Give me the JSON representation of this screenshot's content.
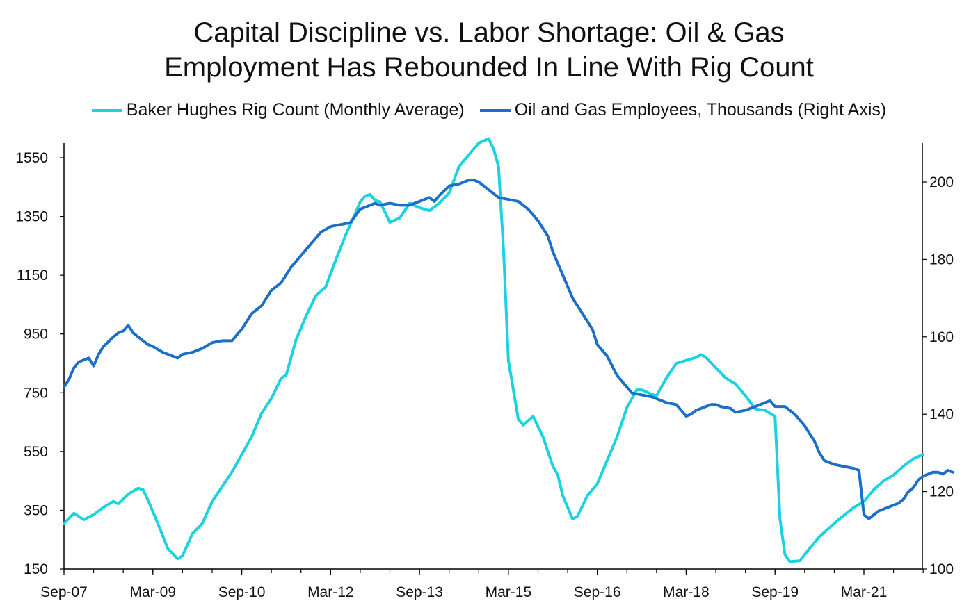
{
  "chart_data": {
    "type": "line",
    "title_line1": "Capital Discipline vs. Labor Shortage: Oil & Gas",
    "title_line2": "Employment Has Rebounded In Line With Rig Count",
    "colors": {
      "rig": "#1bd3e0",
      "employees": "#1c6fc8"
    },
    "x_tick_labels": [
      "Sep-07",
      "Mar-09",
      "Sep-10",
      "Mar-12",
      "Sep-13",
      "Mar-15",
      "Sep-16",
      "Mar-18",
      "Sep-19",
      "Mar-21"
    ],
    "x_range_months": [
      0,
      174
    ],
    "y_left": {
      "ticks": [
        1550,
        1350,
        1150,
        950,
        750,
        550,
        350,
        150
      ],
      "range": [
        150,
        1600
      ]
    },
    "y_right": {
      "ticks": [
        200,
        180,
        160,
        140,
        120,
        100
      ],
      "range": [
        100,
        210
      ]
    },
    "series": [
      {
        "name": "Baker Hughes Rig Count (Monthly Average)",
        "axis": "left",
        "points": [
          [
            0,
            305
          ],
          [
            2,
            340
          ],
          [
            4,
            318
          ],
          [
            6,
            335
          ],
          [
            8,
            360
          ],
          [
            10,
            380
          ],
          [
            11,
            372
          ],
          [
            13,
            405
          ],
          [
            15,
            425
          ],
          [
            16,
            420
          ],
          [
            17,
            385
          ],
          [
            19,
            305
          ],
          [
            21,
            220
          ],
          [
            23,
            185
          ],
          [
            24,
            195
          ],
          [
            26,
            270
          ],
          [
            28,
            305
          ],
          [
            30,
            380
          ],
          [
            32,
            430
          ],
          [
            34,
            480
          ],
          [
            36,
            540
          ],
          [
            38,
            600
          ],
          [
            40,
            680
          ],
          [
            42,
            730
          ],
          [
            44,
            800
          ],
          [
            45,
            810
          ],
          [
            47,
            930
          ],
          [
            49,
            1010
          ],
          [
            51,
            1080
          ],
          [
            53,
            1110
          ],
          [
            55,
            1200
          ],
          [
            57,
            1285
          ],
          [
            59,
            1360
          ],
          [
            60,
            1400
          ],
          [
            61,
            1420
          ],
          [
            62,
            1425
          ],
          [
            63,
            1405
          ],
          [
            64,
            1400
          ],
          [
            66,
            1330
          ],
          [
            68,
            1345
          ],
          [
            70,
            1395
          ],
          [
            72,
            1380
          ],
          [
            74,
            1370
          ],
          [
            76,
            1395
          ],
          [
            78,
            1430
          ],
          [
            80,
            1520
          ],
          [
            82,
            1560
          ],
          [
            84,
            1600
          ],
          [
            86,
            1615
          ],
          [
            87,
            1580
          ],
          [
            88,
            1520
          ],
          [
            89,
            1240
          ],
          [
            90,
            860
          ],
          [
            92,
            660
          ],
          [
            93,
            640
          ],
          [
            95,
            670
          ],
          [
            97,
            600
          ],
          [
            99,
            500
          ],
          [
            100,
            470
          ],
          [
            101,
            400
          ],
          [
            103,
            320
          ],
          [
            104,
            330
          ],
          [
            106,
            400
          ],
          [
            108,
            440
          ],
          [
            110,
            520
          ],
          [
            112,
            600
          ],
          [
            114,
            700
          ],
          [
            116,
            760
          ],
          [
            117,
            760
          ],
          [
            119,
            745
          ],
          [
            120,
            740
          ],
          [
            122,
            800
          ],
          [
            124,
            850
          ],
          [
            126,
            860
          ],
          [
            128,
            870
          ],
          [
            129,
            880
          ],
          [
            130,
            870
          ],
          [
            132,
            835
          ],
          [
            134,
            800
          ],
          [
            136,
            780
          ],
          [
            138,
            740
          ],
          [
            140,
            695
          ],
          [
            142,
            690
          ],
          [
            143,
            680
          ],
          [
            144,
            670
          ],
          [
            145,
            320
          ],
          [
            146,
            200
          ],
          [
            147,
            175
          ],
          [
            149,
            178
          ],
          [
            151,
            220
          ],
          [
            153,
            260
          ],
          [
            155,
            290
          ],
          [
            157,
            320
          ],
          [
            160,
            360
          ],
          [
            162,
            380
          ],
          [
            164,
            420
          ],
          [
            166,
            450
          ],
          [
            168,
            470
          ],
          [
            170,
            500
          ],
          [
            172,
            525
          ],
          [
            174,
            540
          ]
        ]
      },
      {
        "name": "Oil and Gas Employees, Thousands (Right Axis)",
        "axis": "right",
        "points": [
          [
            0,
            147
          ],
          [
            1,
            149
          ],
          [
            2,
            152
          ],
          [
            3,
            153.5
          ],
          [
            4,
            154
          ],
          [
            5,
            154.5
          ],
          [
            6,
            152.5
          ],
          [
            7,
            155.5
          ],
          [
            8,
            157.5
          ],
          [
            10,
            160
          ],
          [
            11,
            161
          ],
          [
            12,
            161.5
          ],
          [
            13,
            163
          ],
          [
            14,
            161
          ],
          [
            15,
            160
          ],
          [
            17,
            158
          ],
          [
            18,
            157.5
          ],
          [
            20,
            156
          ],
          [
            21,
            155.5
          ],
          [
            22,
            155
          ],
          [
            23,
            154.5
          ],
          [
            24,
            155.5
          ],
          [
            26,
            156
          ],
          [
            28,
            157
          ],
          [
            30,
            158.5
          ],
          [
            32,
            159
          ],
          [
            34,
            159
          ],
          [
            36,
            162
          ],
          [
            38,
            166
          ],
          [
            40,
            168
          ],
          [
            42,
            172
          ],
          [
            44,
            174
          ],
          [
            46,
            178
          ],
          [
            48,
            181
          ],
          [
            50,
            184
          ],
          [
            52,
            187
          ],
          [
            54,
            188.5
          ],
          [
            56,
            189
          ],
          [
            58,
            189.5
          ],
          [
            60,
            193
          ],
          [
            62,
            194
          ],
          [
            63,
            194.5
          ],
          [
            64,
            194
          ],
          [
            66,
            194.5
          ],
          [
            68,
            194
          ],
          [
            70,
            194
          ],
          [
            72,
            195
          ],
          [
            74,
            196
          ],
          [
            75,
            195
          ],
          [
            76,
            196.5
          ],
          [
            78,
            199
          ],
          [
            80,
            199.5
          ],
          [
            81,
            200
          ],
          [
            82,
            200.5
          ],
          [
            83,
            200.5
          ],
          [
            84,
            200
          ],
          [
            86,
            198
          ],
          [
            88,
            196
          ],
          [
            90,
            195.5
          ],
          [
            92,
            195
          ],
          [
            94,
            193
          ],
          [
            96,
            190
          ],
          [
            98,
            186
          ],
          [
            99,
            182
          ],
          [
            101,
            176
          ],
          [
            103,
            170
          ],
          [
            105,
            166
          ],
          [
            107,
            162
          ],
          [
            108,
            158
          ],
          [
            110,
            155
          ],
          [
            112,
            150
          ],
          [
            114,
            147
          ],
          [
            115,
            145.5
          ],
          [
            117,
            145
          ],
          [
            119,
            144.5
          ],
          [
            121,
            143.5
          ],
          [
            122,
            143
          ],
          [
            124,
            142.5
          ],
          [
            125,
            141
          ],
          [
            126,
            139.5
          ],
          [
            127,
            140
          ],
          [
            128,
            141
          ],
          [
            130,
            142
          ],
          [
            131,
            142.5
          ],
          [
            132,
            142.5
          ],
          [
            133,
            142
          ],
          [
            135,
            141.5
          ],
          [
            136,
            140.5
          ],
          [
            138,
            141
          ],
          [
            140,
            142
          ],
          [
            142,
            143
          ],
          [
            143,
            143.5
          ],
          [
            144,
            142
          ],
          [
            146,
            142
          ],
          [
            148,
            140
          ],
          [
            150,
            137
          ],
          [
            152,
            133
          ],
          [
            153,
            130
          ],
          [
            154,
            128
          ],
          [
            156,
            127
          ],
          [
            158,
            126.5
          ],
          [
            160,
            126
          ],
          [
            161,
            125.5
          ],
          [
            162,
            114
          ],
          [
            163,
            113
          ],
          [
            164,
            114
          ],
          [
            165,
            115
          ],
          [
            166,
            115.5
          ],
          [
            168,
            116.5
          ],
          [
            169,
            117
          ],
          [
            170,
            118
          ],
          [
            171,
            120
          ],
          [
            172,
            121
          ],
          [
            173,
            123
          ],
          [
            174,
            124
          ],
          [
            175,
            124.5
          ],
          [
            176,
            125
          ],
          [
            177,
            125
          ],
          [
            178,
            124.5
          ],
          [
            179,
            125.5
          ],
          [
            180,
            125
          ]
        ]
      }
    ]
  }
}
